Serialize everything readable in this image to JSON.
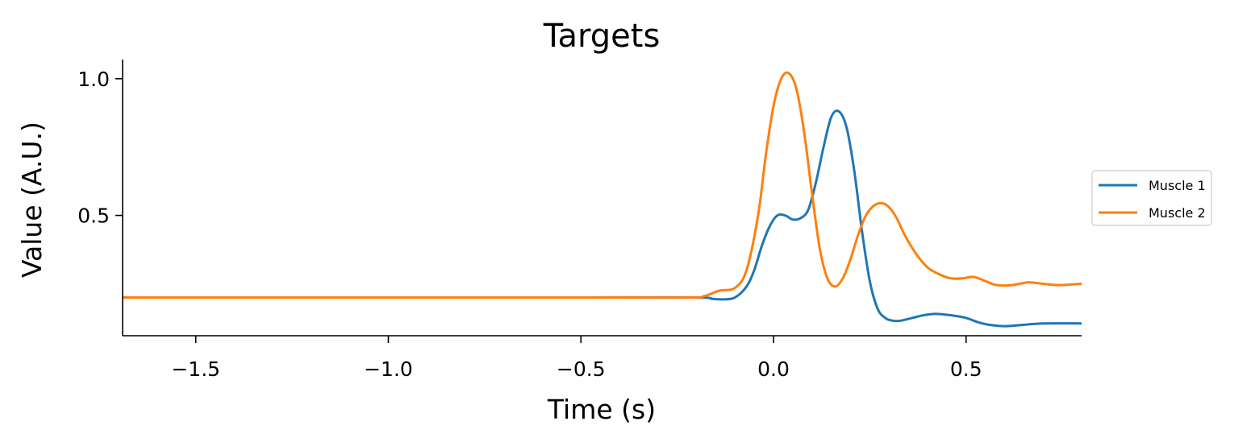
{
  "chart_data": {
    "type": "line",
    "title": "Targets",
    "xlabel": "Time (s)",
    "ylabel": "Value (A.U.)",
    "xlim": [
      -1.69,
      0.8
    ],
    "ylim": [
      0.06,
      1.07
    ],
    "xticks": [
      -1.5,
      -1.0,
      -0.5,
      0.0,
      0.5
    ],
    "xtick_labels": [
      "−1.5",
      "−1.0",
      "−0.5",
      "0.0",
      "0.5"
    ],
    "yticks": [
      0.5,
      1.0
    ],
    "ytick_labels": [
      "0.5",
      "1.0"
    ],
    "grid": false,
    "legend_position": "outside-right",
    "series": [
      {
        "name": "Muscle 1",
        "color": "#1f77b4",
        "x": [
          -1.69,
          -0.5,
          -0.2,
          -0.16,
          -0.13,
          -0.1,
          -0.07,
          -0.05,
          -0.03,
          -0.01,
          0.01,
          0.03,
          0.05,
          0.07,
          0.09,
          0.11,
          0.13,
          0.15,
          0.17,
          0.19,
          0.21,
          0.23,
          0.25,
          0.27,
          0.29,
          0.31,
          0.33,
          0.36,
          0.39,
          0.42,
          0.46,
          0.5,
          0.53,
          0.56,
          0.6,
          0.65,
          0.7,
          0.8
        ],
        "values": [
          0.2,
          0.2,
          0.2,
          0.195,
          0.193,
          0.2,
          0.24,
          0.3,
          0.39,
          0.46,
          0.5,
          0.5,
          0.485,
          0.49,
          0.52,
          0.62,
          0.75,
          0.86,
          0.88,
          0.82,
          0.66,
          0.44,
          0.26,
          0.16,
          0.125,
          0.115,
          0.115,
          0.125,
          0.135,
          0.14,
          0.135,
          0.125,
          0.11,
          0.1,
          0.095,
          0.1,
          0.105,
          0.105
        ]
      },
      {
        "name": "Muscle 2",
        "color": "#ff7f0e",
        "x": [
          -1.69,
          -0.5,
          -0.22,
          -0.18,
          -0.14,
          -0.1,
          -0.07,
          -0.04,
          -0.02,
          0.0,
          0.02,
          0.04,
          0.06,
          0.08,
          0.1,
          0.12,
          0.14,
          0.16,
          0.18,
          0.2,
          0.22,
          0.24,
          0.26,
          0.28,
          0.3,
          0.32,
          0.34,
          0.37,
          0.4,
          0.43,
          0.46,
          0.49,
          0.52,
          0.55,
          0.58,
          0.62,
          0.66,
          0.7,
          0.74,
          0.8
        ],
        "values": [
          0.2,
          0.2,
          0.2,
          0.205,
          0.225,
          0.235,
          0.3,
          0.5,
          0.72,
          0.9,
          1.0,
          1.02,
          0.96,
          0.8,
          0.58,
          0.38,
          0.27,
          0.24,
          0.27,
          0.34,
          0.43,
          0.5,
          0.535,
          0.545,
          0.53,
          0.49,
          0.43,
          0.36,
          0.31,
          0.285,
          0.27,
          0.27,
          0.275,
          0.26,
          0.245,
          0.245,
          0.255,
          0.25,
          0.245,
          0.25
        ]
      }
    ]
  }
}
